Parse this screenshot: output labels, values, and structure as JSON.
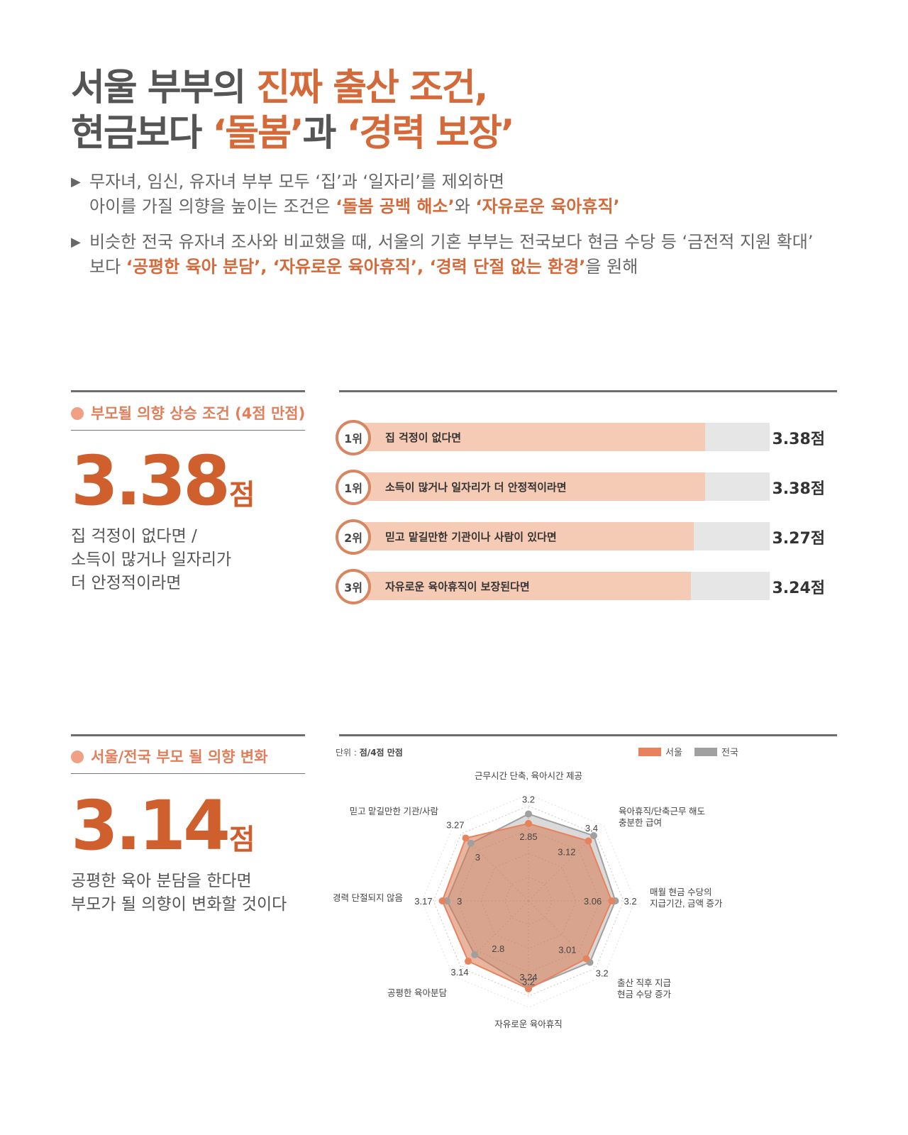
{
  "header": {
    "line1_a": "서울 부부의 ",
    "line1_b": "진짜 출산 조건,",
    "line2_a": "현금보다 ",
    "line2_b": "‘돌봄’",
    "line2_c": "과 ",
    "line2_d": "‘경력 보장’"
  },
  "bullets": [
    {
      "marker": "▶",
      "line1": "무자녀, 임신, 유자녀 부부 모두 ‘집’과 ‘일자리’를 제외하면",
      "line2_a": "아이를 가질 의향을 높이는 조건은 ",
      "line2_b": "‘돌봄 공백 해소’",
      "line2_c": "와 ",
      "line2_d": "‘자유로운 육아휴직’"
    },
    {
      "marker": "▶",
      "line1": "비슷한 전국 유자녀 조사와 비교했을 때, 서울의 기혼 부부는 전국보다 현금 수당 등 ‘금전적 지원 확대’",
      "line2_a": "보다 ",
      "line2_b": "‘공평한 육아 분담’, ‘자유로운 육아휴직’, ‘경력 단절 없는 환경’",
      "line2_c": "을 원해"
    }
  ],
  "section1": {
    "label": "부모될 의향 상승 조건 (4점 만점)",
    "big_number": "3.38",
    "big_unit": "점",
    "desc": [
      "집 걱정이 없다면 /",
      "소득이 많거나 일자리가",
      "더 안정적이라면"
    ]
  },
  "section2": {
    "label": "서울/전국 부모 될 의향 변화",
    "big_number": "3.14",
    "big_unit": "점",
    "desc": [
      "공평한 육아 분담을 한다면",
      "부모가 될 의향이 변화할 것이다"
    ],
    "unit_prefix": "단위 : ",
    "unit_text": "점/4점 만점"
  },
  "chart_data": [
    {
      "type": "bar",
      "orientation": "horizontal",
      "max": 4,
      "categories": [
        "집 걱정이 없다면",
        "소득이 많거나 일자리가 더 안정적이라면",
        "믿고 맡길만한 기관이나 사람이 있다면",
        "자유로운 육아휴직이 보장된다면"
      ],
      "ranks": [
        "1위",
        "1위",
        "2위",
        "3위"
      ],
      "values": [
        3.38,
        3.38,
        3.27,
        3.24
      ],
      "value_labels": [
        "3.38점",
        "3.38점",
        "3.27점",
        "3.24점"
      ],
      "colors": {
        "bar": "#f6cbb6",
        "track": "#e6e6e6",
        "circle": "#d88562"
      }
    },
    {
      "type": "radar",
      "axes": [
        [
          "근무시간 단축, 육아시간 제공"
        ],
        [
          "육아휴직/단축근무 해도",
          "충분한 급여"
        ],
        [
          "매월 현금 수당의",
          "지급기간, 금액 증가"
        ],
        [
          "출산 직후 지급",
          "현금 수당 증가"
        ],
        [
          "자유로운 육아휴직"
        ],
        [
          "공평한 육아분담"
        ],
        [
          "경력 단절되지 않음"
        ],
        [
          "믿고 맡길만한 기관/사람"
        ]
      ],
      "series": [
        {
          "name": "서울",
          "color": "#e8825c",
          "values": [
            2.85,
            3.12,
            3.06,
            3.01,
            3.24,
            3.14,
            3.17,
            3.27
          ]
        },
        {
          "name": "전국",
          "color": "#a0a0a0",
          "values": [
            3.2,
            3.4,
            3.2,
            3.2,
            3.2,
            2.8,
            3.0,
            3.0
          ]
        }
      ]
    }
  ]
}
